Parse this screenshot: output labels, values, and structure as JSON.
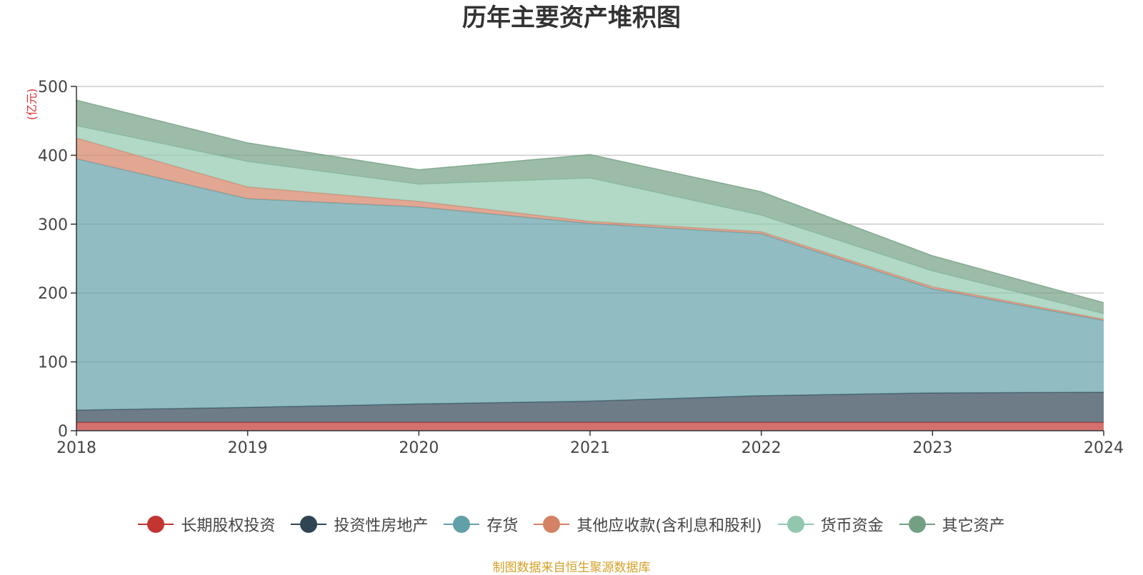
{
  "chart_data": {
    "type": "area",
    "stacked": true,
    "title": "历年主要资产堆积图",
    "unit": "(亿元)",
    "x": [
      "2018",
      "2019",
      "2020",
      "2021",
      "2022",
      "2023",
      "2024"
    ],
    "ylim": [
      0,
      500
    ],
    "yticks": [
      "0",
      "100",
      "200",
      "300",
      "400",
      "500"
    ],
    "grid": true,
    "legend_position": "bottom",
    "series": [
      {
        "name": "长期股权投资",
        "color": "#c23531",
        "values": [
          12,
          12,
          12,
          12,
          12,
          12,
          12
        ]
      },
      {
        "name": "投资性房地产",
        "color": "#2f4554",
        "values": [
          18,
          22,
          27,
          31,
          39,
          43,
          44
        ]
      },
      {
        "name": "存货",
        "color": "#61a0a8",
        "values": [
          365,
          303,
          286,
          258,
          235,
          151,
          104
        ]
      },
      {
        "name": "其他应收款(含利息和股利)",
        "color": "#d48265",
        "values": [
          30,
          17,
          8,
          3,
          3,
          3,
          2
        ]
      },
      {
        "name": "货币资金",
        "color": "#91c7ae",
        "values": [
          18,
          37,
          25,
          63,
          24,
          23,
          8
        ]
      },
      {
        "name": "其它资产",
        "color": "#749f83",
        "values": [
          37,
          27,
          21,
          34,
          34,
          22,
          16
        ]
      }
    ]
  },
  "source_note": "制图数据来自恒生聚源数据库"
}
